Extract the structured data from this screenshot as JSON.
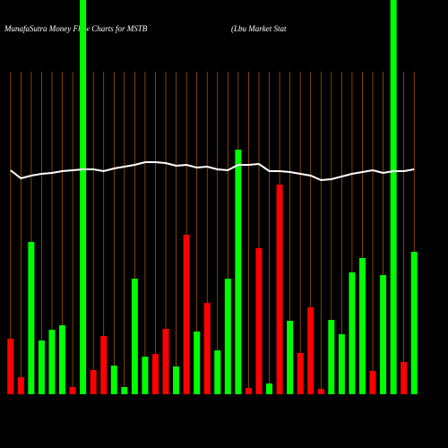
{
  "chart_data": {
    "type": "bar",
    "title": "MunafaSutra  Money Flow  Charts for MSTB",
    "subtitle": "(Lbu  Market Stat",
    "categories": [
      null,
      null,
      null,
      null,
      null,
      null,
      null,
      null,
      null,
      null,
      null,
      null,
      null,
      null,
      null,
      null,
      null,
      null,
      null,
      null,
      null,
      null,
      null,
      null,
      null,
      null,
      null,
      null,
      null,
      null,
      null,
      null,
      null,
      null,
      null,
      null,
      null,
      null,
      null,
      null
    ],
    "values": [
      62,
      19,
      170,
      60,
      72,
      77,
      8,
      440,
      27,
      65,
      32,
      8,
      129,
      42,
      45,
      73,
      31,
      178,
      70,
      102,
      49,
      129,
      273,
      7,
      163,
      12,
      234,
      82,
      46,
      97,
      6,
      83,
      67,
      136,
      152,
      26,
      133,
      440,
      36,
      159
    ],
    "bar_colors": [
      "#ff0000",
      "#ff0000",
      "#00ff00",
      "#00ff00",
      "#00ff00",
      "#00ff00",
      "#ff0000",
      "#00ff00",
      "#ff0000",
      "#ff0000",
      "#00ff00",
      "#00ff00",
      "#00ff00",
      "#00ff00",
      "#ff0000",
      "#ff0000",
      "#00ff00",
      "#ff0000",
      "#00ff00",
      "#ff0000",
      "#00ff00",
      "#00ff00",
      "#00ff00",
      "#ff0000",
      "#ff0000",
      "#00ff00",
      "#ff0000",
      "#00ff00",
      "#ff0000",
      "#ff0000",
      "#ff0000",
      "#00ff00",
      "#00ff00",
      "#00ff00",
      "#00ff00",
      "#ff0000",
      "#00ff00",
      "#00ff00",
      "#ff0000",
      "#00ff00"
    ],
    "line": {
      "color": "#ffffff",
      "values": [
        250,
        241,
        244,
        246,
        247,
        249,
        250,
        251,
        251,
        249,
        252,
        254,
        256,
        259,
        259,
        258,
        255,
        256,
        253,
        254,
        251,
        250,
        256,
        256,
        257,
        249,
        249,
        248,
        246,
        244,
        239,
        240,
        243,
        246,
        248,
        250,
        247,
        249,
        249,
        251
      ]
    },
    "ylim": [
      0,
      440
    ],
    "grid_color": "#b8600a"
  }
}
